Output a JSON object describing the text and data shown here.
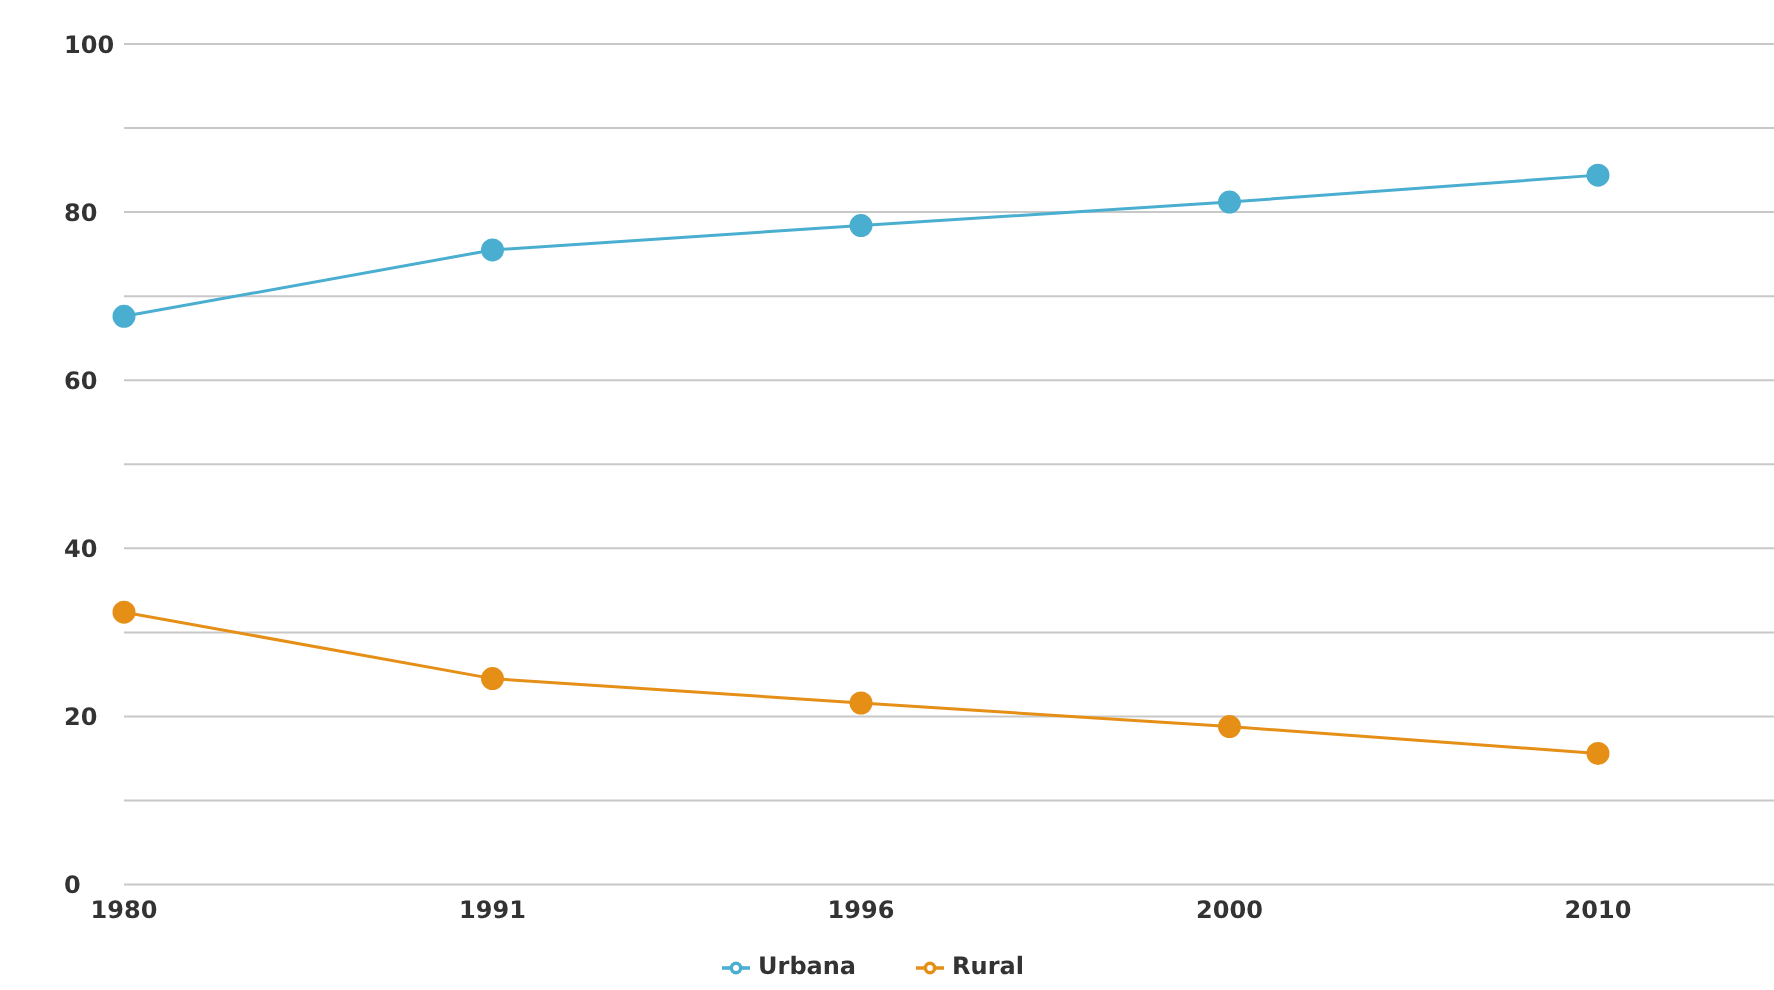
{
  "chart_data": {
    "type": "line",
    "categories": [
      "1980",
      "1991",
      "1996",
      "2000",
      "2010"
    ],
    "series": [
      {
        "name": "Urbana",
        "color": "#4aaed0",
        "values": [
          67.6,
          75.5,
          78.4,
          81.2,
          84.4
        ]
      },
      {
        "name": "Rural",
        "color": "#e58f17",
        "values": [
          32.4,
          24.5,
          21.6,
          18.8,
          15.6
        ]
      }
    ],
    "ylim": [
      0,
      100
    ],
    "yticks": [
      0,
      {
        "value": 10,
        "label": null
      },
      20,
      {
        "value": 30,
        "label": null
      },
      40,
      {
        "value": 50,
        "label": null
      },
      60,
      {
        "value": 70,
        "label": null
      },
      80,
      {
        "value": 90,
        "label": null
      },
      100
    ],
    "grid": "y",
    "legend": "bottom",
    "marker": "circle",
    "line_style": "solid"
  }
}
